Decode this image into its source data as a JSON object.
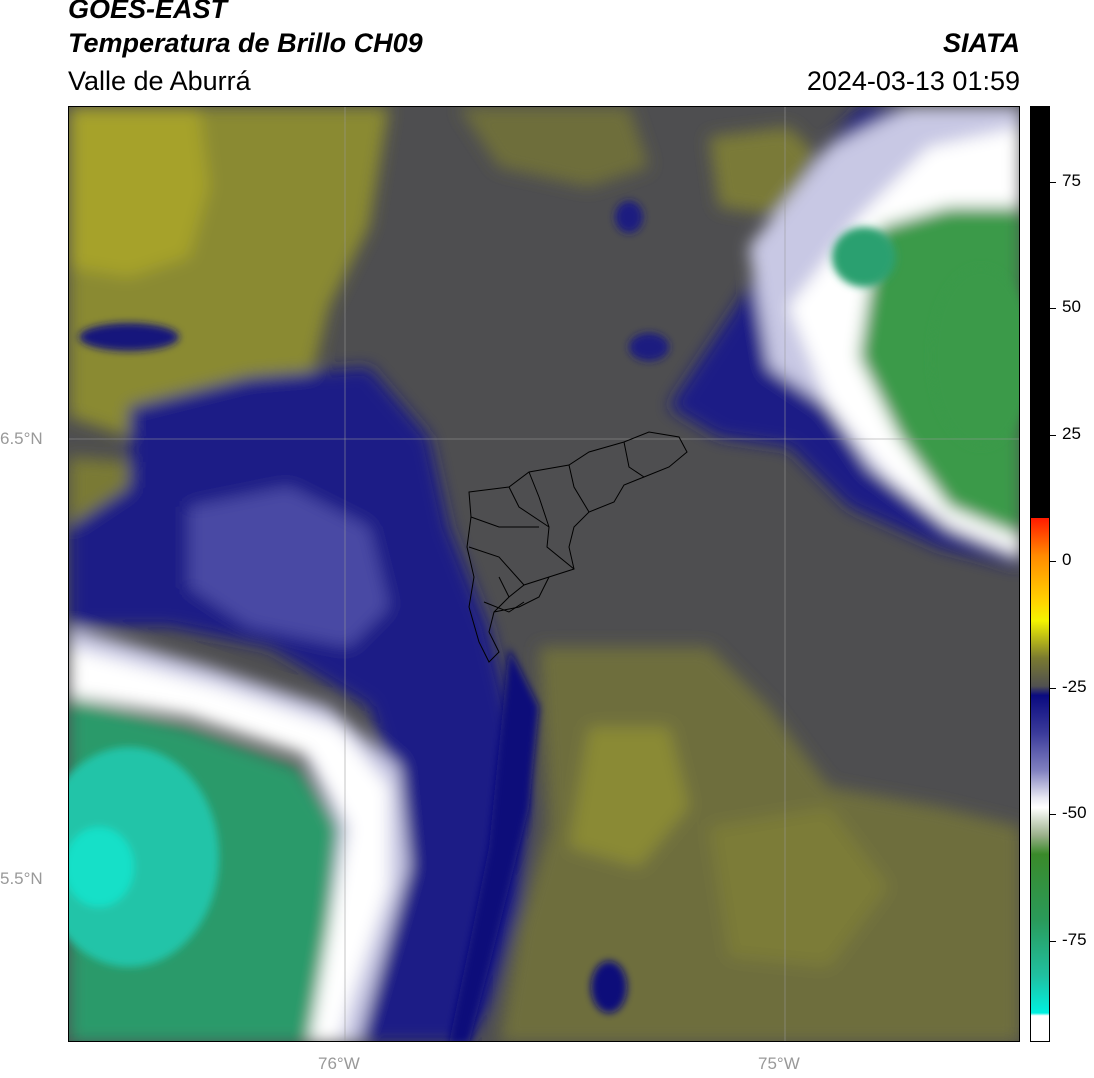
{
  "header": {
    "satellite": "GOES-EAST",
    "product": "Temperatura de Brillo CH09",
    "region": "Valle de Aburrá",
    "organization": "SIATA",
    "datetime": "2024-03-13 01:59"
  },
  "axes": {
    "lat_ticks": [
      "6.5°N",
      "5.5°N"
    ],
    "lon_ticks": [
      "76°W",
      "75°W"
    ]
  },
  "colorbar": {
    "tick_labels": [
      "75",
      "50",
      "25",
      "0",
      "-25",
      "-50",
      "-75"
    ],
    "tick_values": [
      75,
      50,
      25,
      0,
      -25,
      -50,
      -75
    ],
    "range": [
      -95,
      90
    ],
    "colors": {
      "cold_cyan": "#00f0e0",
      "green": "#3a8a2a",
      "white": "#ffffff",
      "blue": "#0a0a80",
      "gray": "#505050",
      "olive": "#8a8a30",
      "yellow": "#f4f400",
      "red": "#ff1a00",
      "black": "#000000"
    }
  }
}
